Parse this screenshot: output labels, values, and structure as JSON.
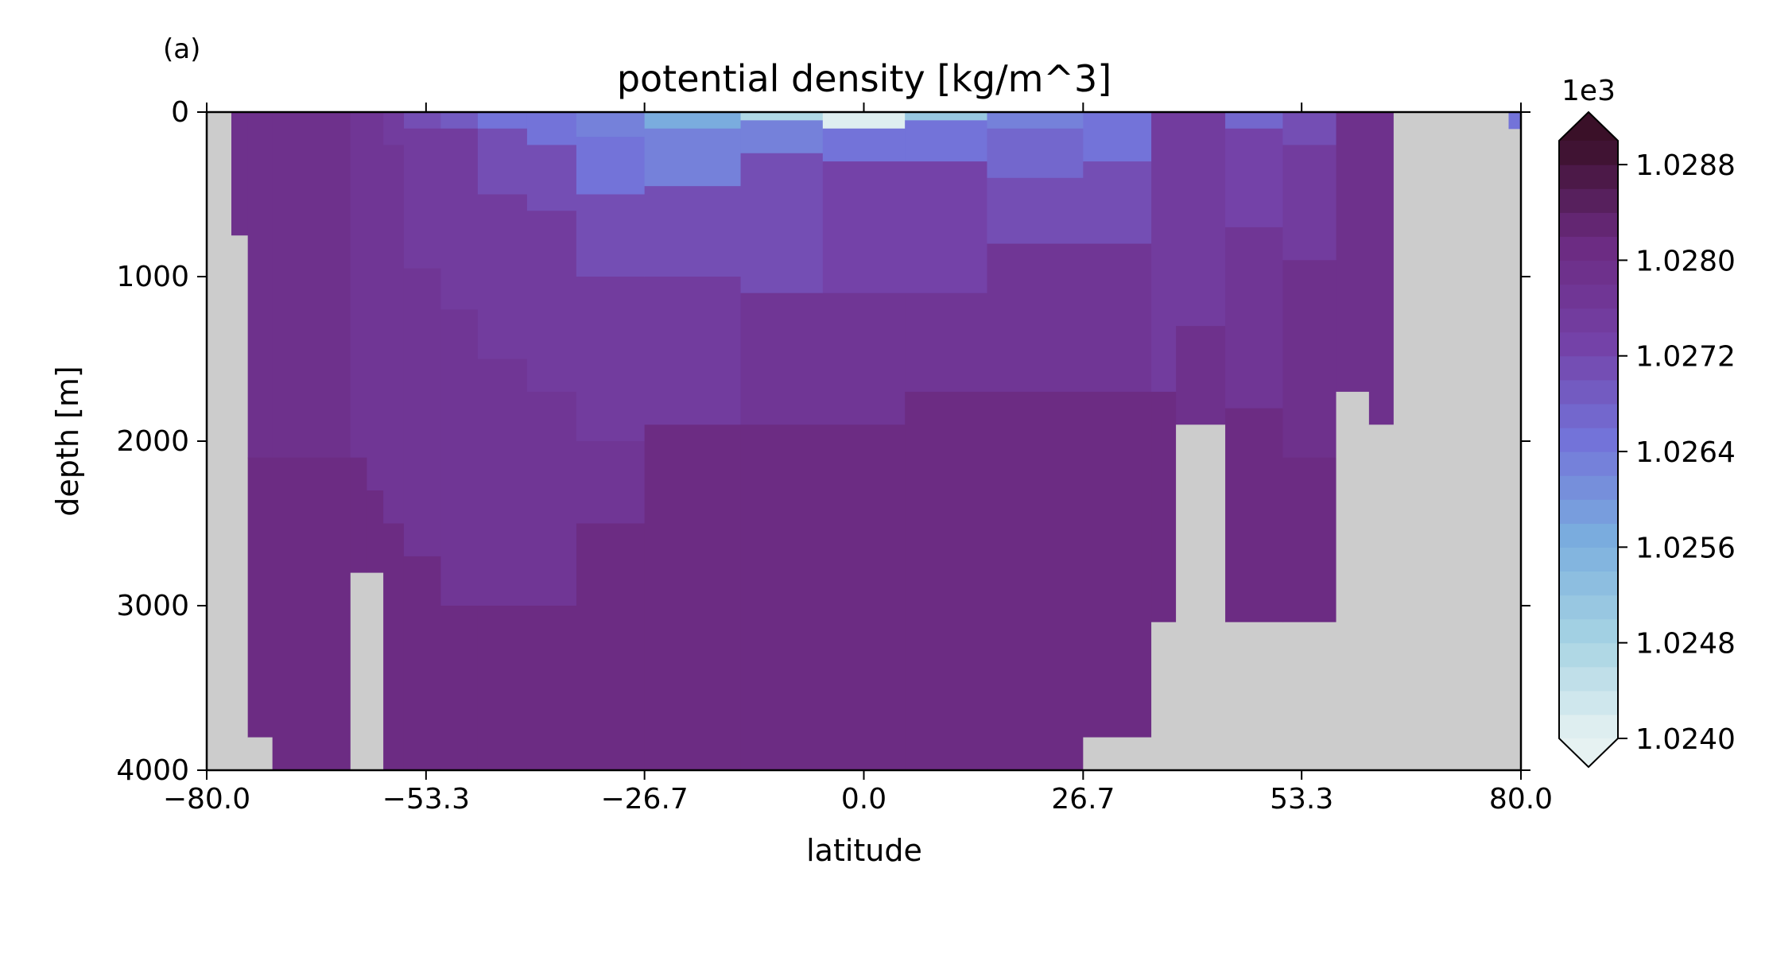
{
  "chart_data": {
    "type": "heatmap",
    "panel_label": "(a)",
    "title": "potential density [kg/m^3]",
    "xlabel": "latitude",
    "ylabel": "depth [m]",
    "xlim": [
      -80.0,
      80.0
    ],
    "ylim": [
      4000,
      0
    ],
    "x_ticks": [
      -80.0,
      -53.3,
      -26.7,
      0.0,
      26.7,
      53.3,
      80.0
    ],
    "x_tick_labels": [
      "−80.0",
      "−53.3",
      "−26.7",
      "0.0",
      "26.7",
      "53.3",
      "80.0"
    ],
    "y_ticks": [
      0,
      1000,
      2000,
      3000,
      4000
    ],
    "y_tick_labels": [
      "0",
      "1000",
      "2000",
      "3000",
      "4000"
    ],
    "colorbar": {
      "offset_label": "1e3",
      "vmin": 1.024,
      "vmax": 1.029,
      "levels": 25,
      "extend": "both",
      "ticks": [
        1.024,
        1.0248,
        1.0256,
        1.0264,
        1.0272,
        1.028,
        1.0288
      ],
      "tick_labels": [
        "1.0240",
        "1.0248",
        "1.0256",
        "1.0264",
        "1.0272",
        "1.0280",
        "1.0288"
      ],
      "colormap_stops": [
        "#e6f2f2",
        "#a6d3e3",
        "#7aaede",
        "#7373d9",
        "#7440a6",
        "#6b2a80",
        "#3a1028"
      ]
    },
    "land_color": "#cccccc",
    "density_field": [
      {
        "lat_min": -80.0,
        "lat_max": -77.0,
        "depth_min": 0,
        "depth_max": 4000,
        "value": null
      },
      {
        "lat_min": -77.0,
        "lat_max": -75.0,
        "depth_min": 0,
        "depth_max": 750,
        "value": 1.0279
      },
      {
        "lat_min": -77.0,
        "lat_max": -75.0,
        "depth_min": 750,
        "depth_max": 4000,
        "value": null
      },
      {
        "lat_min": -75.0,
        "lat_max": -72.0,
        "depth_min": 0,
        "depth_max": 2100,
        "value": 1.0279
      },
      {
        "lat_min": -75.0,
        "lat_max": -72.0,
        "depth_min": 2100,
        "depth_max": 3800,
        "value": 1.0281
      },
      {
        "lat_min": -75.0,
        "lat_max": -72.0,
        "depth_min": 3800,
        "depth_max": 4000,
        "value": null
      },
      {
        "lat_min": -72.0,
        "lat_max": -62.5,
        "depth_min": 0,
        "depth_max": 2100,
        "value": 1.0279
      },
      {
        "lat_min": -72.0,
        "lat_max": -62.5,
        "depth_min": 2100,
        "depth_max": 4000,
        "value": 1.0281
      },
      {
        "lat_min": -62.5,
        "lat_max": -60.5,
        "depth_min": 0,
        "depth_max": 2100,
        "value": 1.0277
      },
      {
        "lat_min": -62.5,
        "lat_max": -60.5,
        "depth_min": 2100,
        "depth_max": 2800,
        "value": 1.0281
      },
      {
        "lat_min": -62.5,
        "lat_max": -60.5,
        "depth_min": 2800,
        "depth_max": 4000,
        "value": null
      },
      {
        "lat_min": -60.5,
        "lat_max": -58.5,
        "depth_min": 0,
        "depth_max": 2300,
        "value": 1.0277
      },
      {
        "lat_min": -60.5,
        "lat_max": -58.5,
        "depth_min": 2300,
        "depth_max": 2800,
        "value": 1.0281
      },
      {
        "lat_min": -60.5,
        "lat_max": -58.5,
        "depth_min": 2800,
        "depth_max": 3800,
        "value": null
      },
      {
        "lat_min": -60.5,
        "lat_max": -58.5,
        "depth_min": 3800,
        "depth_max": 4000,
        "value": null
      },
      {
        "lat_min": -58.5,
        "lat_max": -56.0,
        "depth_min": 0,
        "depth_max": 200,
        "value": 1.0275
      },
      {
        "lat_min": -58.5,
        "lat_max": -56.0,
        "depth_min": 200,
        "depth_max": 2500,
        "value": 1.0277
      },
      {
        "lat_min": -58.5,
        "lat_max": -56.0,
        "depth_min": 2500,
        "depth_max": 4000,
        "value": 1.0281
      },
      {
        "lat_min": -56.0,
        "lat_max": -51.5,
        "depth_min": 0,
        "depth_max": 100,
        "value": 1.0272
      },
      {
        "lat_min": -56.0,
        "lat_max": -51.5,
        "depth_min": 100,
        "depth_max": 950,
        "value": 1.0275
      },
      {
        "lat_min": -56.0,
        "lat_max": -51.5,
        "depth_min": 950,
        "depth_max": 2700,
        "value": 1.0277
      },
      {
        "lat_min": -56.0,
        "lat_max": -51.5,
        "depth_min": 2700,
        "depth_max": 4000,
        "value": 1.0281
      },
      {
        "lat_min": -51.5,
        "lat_max": -47.0,
        "depth_min": 0,
        "depth_max": 100,
        "value": 1.0269
      },
      {
        "lat_min": -51.5,
        "lat_max": -47.0,
        "depth_min": 100,
        "depth_max": 1200,
        "value": 1.0275
      },
      {
        "lat_min": -51.5,
        "lat_max": -47.0,
        "depth_min": 1200,
        "depth_max": 3000,
        "value": 1.0277
      },
      {
        "lat_min": -51.5,
        "lat_max": -47.0,
        "depth_min": 3000,
        "depth_max": 4000,
        "value": 1.0281
      },
      {
        "lat_min": -47.0,
        "lat_max": -41.0,
        "depth_min": 0,
        "depth_max": 100,
        "value": 1.0266
      },
      {
        "lat_min": -47.0,
        "lat_max": -41.0,
        "depth_min": 100,
        "depth_max": 500,
        "value": 1.0272
      },
      {
        "lat_min": -47.0,
        "lat_max": -41.0,
        "depth_min": 500,
        "depth_max": 1500,
        "value": 1.0275
      },
      {
        "lat_min": -47.0,
        "lat_max": -41.0,
        "depth_min": 1500,
        "depth_max": 3000,
        "value": 1.0277
      },
      {
        "lat_min": -47.0,
        "lat_max": -41.0,
        "depth_min": 3000,
        "depth_max": 4000,
        "value": 1.0281
      },
      {
        "lat_min": -41.0,
        "lat_max": -35.0,
        "depth_min": 0,
        "depth_max": 200,
        "value": 1.0264
      },
      {
        "lat_min": -41.0,
        "lat_max": -35.0,
        "depth_min": 200,
        "depth_max": 600,
        "value": 1.0271
      },
      {
        "lat_min": -41.0,
        "lat_max": -35.0,
        "depth_min": 600,
        "depth_max": 1700,
        "value": 1.0275
      },
      {
        "lat_min": -41.0,
        "lat_max": -35.0,
        "depth_min": 1700,
        "depth_max": 3000,
        "value": 1.0277
      },
      {
        "lat_min": -41.0,
        "lat_max": -35.0,
        "depth_min": 3000,
        "depth_max": 4000,
        "value": 1.0281
      },
      {
        "lat_min": -35.0,
        "lat_max": -26.7,
        "depth_min": 0,
        "depth_max": 150,
        "value": 1.0262
      },
      {
        "lat_min": -35.0,
        "lat_max": -26.7,
        "depth_min": 150,
        "depth_max": 500,
        "value": 1.0266
      },
      {
        "lat_min": -35.0,
        "lat_max": -26.7,
        "depth_min": 500,
        "depth_max": 1000,
        "value": 1.0272
      },
      {
        "lat_min": -35.0,
        "lat_max": -26.7,
        "depth_min": 1000,
        "depth_max": 2000,
        "value": 1.0275
      },
      {
        "lat_min": -35.0,
        "lat_max": -26.7,
        "depth_min": 2000,
        "depth_max": 2500,
        "value": 1.0277
      },
      {
        "lat_min": -35.0,
        "lat_max": -26.7,
        "depth_min": 2500,
        "depth_max": 4000,
        "value": 1.0281
      },
      {
        "lat_min": -26.7,
        "lat_max": -15.0,
        "depth_min": 0,
        "depth_max": 100,
        "value": 1.0256
      },
      {
        "lat_min": -26.7,
        "lat_max": -15.0,
        "depth_min": 100,
        "depth_max": 450,
        "value": 1.0263
      },
      {
        "lat_min": -26.7,
        "lat_max": -15.0,
        "depth_min": 450,
        "depth_max": 1000,
        "value": 1.0271
      },
      {
        "lat_min": -26.7,
        "lat_max": -15.0,
        "depth_min": 1000,
        "depth_max": 1900,
        "value": 1.0275
      },
      {
        "lat_min": -26.7,
        "lat_max": -15.0,
        "depth_min": 1900,
        "depth_max": 4000,
        "value": 1.0281
      },
      {
        "lat_min": -15.0,
        "lat_max": -5.0,
        "depth_min": 0,
        "depth_max": 50,
        "value": 1.0248
      },
      {
        "lat_min": -15.0,
        "lat_max": -5.0,
        "depth_min": 50,
        "depth_max": 250,
        "value": 1.0262
      },
      {
        "lat_min": -15.0,
        "lat_max": -5.0,
        "depth_min": 250,
        "depth_max": 1100,
        "value": 1.0272
      },
      {
        "lat_min": -15.0,
        "lat_max": -5.0,
        "depth_min": 1100,
        "depth_max": 1900,
        "value": 1.0276
      },
      {
        "lat_min": -15.0,
        "lat_max": -5.0,
        "depth_min": 1900,
        "depth_max": 4000,
        "value": 1.0281
      },
      {
        "lat_min": -5.0,
        "lat_max": 5.0,
        "depth_min": 0,
        "depth_max": 100,
        "value": 1.0241
      },
      {
        "lat_min": -5.0,
        "lat_max": 5.0,
        "depth_min": 100,
        "depth_max": 300,
        "value": 1.0264
      },
      {
        "lat_min": -5.0,
        "lat_max": 5.0,
        "depth_min": 300,
        "depth_max": 1100,
        "value": 1.0273
      },
      {
        "lat_min": -5.0,
        "lat_max": 5.0,
        "depth_min": 1100,
        "depth_max": 1900,
        "value": 1.0276
      },
      {
        "lat_min": -5.0,
        "lat_max": 5.0,
        "depth_min": 1900,
        "depth_max": 4000,
        "value": 1.0281
      },
      {
        "lat_min": 5.0,
        "lat_max": 15.0,
        "depth_min": 0,
        "depth_max": 50,
        "value": 1.0252
      },
      {
        "lat_min": 5.0,
        "lat_max": 15.0,
        "depth_min": 50,
        "depth_max": 300,
        "value": 1.0266
      },
      {
        "lat_min": 5.0,
        "lat_max": 15.0,
        "depth_min": 300,
        "depth_max": 1100,
        "value": 1.0273
      },
      {
        "lat_min": 5.0,
        "lat_max": 15.0,
        "depth_min": 1100,
        "depth_max": 1700,
        "value": 1.0276
      },
      {
        "lat_min": 5.0,
        "lat_max": 15.0,
        "depth_min": 1700,
        "depth_max": 4000,
        "value": 1.0281
      },
      {
        "lat_min": 15.0,
        "lat_max": 26.7,
        "depth_min": 0,
        "depth_max": 100,
        "value": 1.0262
      },
      {
        "lat_min": 15.0,
        "lat_max": 26.7,
        "depth_min": 100,
        "depth_max": 400,
        "value": 1.0268
      },
      {
        "lat_min": 15.0,
        "lat_max": 26.7,
        "depth_min": 400,
        "depth_max": 800,
        "value": 1.0272
      },
      {
        "lat_min": 15.0,
        "lat_max": 26.7,
        "depth_min": 800,
        "depth_max": 1700,
        "value": 1.0276
      },
      {
        "lat_min": 15.0,
        "lat_max": 26.7,
        "depth_min": 1700,
        "depth_max": 4000,
        "value": 1.0281
      },
      {
        "lat_min": 26.7,
        "lat_max": 35.0,
        "depth_min": 0,
        "depth_max": 300,
        "value": 1.0265
      },
      {
        "lat_min": 26.7,
        "lat_max": 35.0,
        "depth_min": 300,
        "depth_max": 800,
        "value": 1.0272
      },
      {
        "lat_min": 26.7,
        "lat_max": 35.0,
        "depth_min": 800,
        "depth_max": 1700,
        "value": 1.0276
      },
      {
        "lat_min": 26.7,
        "lat_max": 35.0,
        "depth_min": 1700,
        "depth_max": 3800,
        "value": 1.0281
      },
      {
        "lat_min": 26.7,
        "lat_max": 35.0,
        "depth_min": 3800,
        "depth_max": 4000,
        "value": null
      },
      {
        "lat_min": 35.0,
        "lat_max": 38.0,
        "depth_min": 0,
        "depth_max": 1700,
        "value": 1.0275
      },
      {
        "lat_min": 35.0,
        "lat_max": 38.0,
        "depth_min": 1700,
        "depth_max": 3100,
        "value": 1.0281
      },
      {
        "lat_min": 35.0,
        "lat_max": 38.0,
        "depth_min": 3100,
        "depth_max": 4000,
        "value": null
      },
      {
        "lat_min": 38.0,
        "lat_max": 44.0,
        "depth_min": 0,
        "depth_max": 1300,
        "value": 1.0275
      },
      {
        "lat_min": 38.0,
        "lat_max": 44.0,
        "depth_min": 1300,
        "depth_max": 1900,
        "value": 1.0279
      },
      {
        "lat_min": 38.0,
        "lat_max": 44.0,
        "depth_min": 1900,
        "depth_max": 4000,
        "value": null
      },
      {
        "lat_min": 44.0,
        "lat_max": 51.0,
        "depth_min": 0,
        "depth_max": 100,
        "value": 1.0268
      },
      {
        "lat_min": 44.0,
        "lat_max": 51.0,
        "depth_min": 100,
        "depth_max": 700,
        "value": 1.0273
      },
      {
        "lat_min": 44.0,
        "lat_max": 51.0,
        "depth_min": 700,
        "depth_max": 1800,
        "value": 1.0277
      },
      {
        "lat_min": 44.0,
        "lat_max": 51.0,
        "depth_min": 1800,
        "depth_max": 3100,
        "value": 1.0281
      },
      {
        "lat_min": 44.0,
        "lat_max": 51.0,
        "depth_min": 3100,
        "depth_max": 4000,
        "value": null
      },
      {
        "lat_min": 51.0,
        "lat_max": 57.5,
        "depth_min": 0,
        "depth_max": 200,
        "value": 1.0272
      },
      {
        "lat_min": 51.0,
        "lat_max": 57.5,
        "depth_min": 200,
        "depth_max": 900,
        "value": 1.0275
      },
      {
        "lat_min": 51.0,
        "lat_max": 57.5,
        "depth_min": 900,
        "depth_max": 2100,
        "value": 1.0278
      },
      {
        "lat_min": 51.0,
        "lat_max": 57.5,
        "depth_min": 2100,
        "depth_max": 3100,
        "value": 1.0281
      },
      {
        "lat_min": 51.0,
        "lat_max": 57.5,
        "depth_min": 3100,
        "depth_max": 4000,
        "value": null
      },
      {
        "lat_min": 57.5,
        "lat_max": 61.5,
        "depth_min": 0,
        "depth_max": 1700,
        "value": 1.0279
      },
      {
        "lat_min": 57.5,
        "lat_max": 61.5,
        "depth_min": 1700,
        "depth_max": 4000,
        "value": null
      },
      {
        "lat_min": 61.5,
        "lat_max": 64.5,
        "depth_min": 0,
        "depth_max": 1900,
        "value": 1.0279
      },
      {
        "lat_min": 61.5,
        "lat_max": 64.5,
        "depth_min": 1900,
        "depth_max": 4000,
        "value": null
      },
      {
        "lat_min": 64.5,
        "lat_max": 80.0,
        "depth_min": 0,
        "depth_max": 4000,
        "value": null
      },
      {
        "lat_min": 78.5,
        "lat_max": 80.0,
        "depth_min": 0,
        "depth_max": 100,
        "value": 1.0266
      }
    ]
  }
}
